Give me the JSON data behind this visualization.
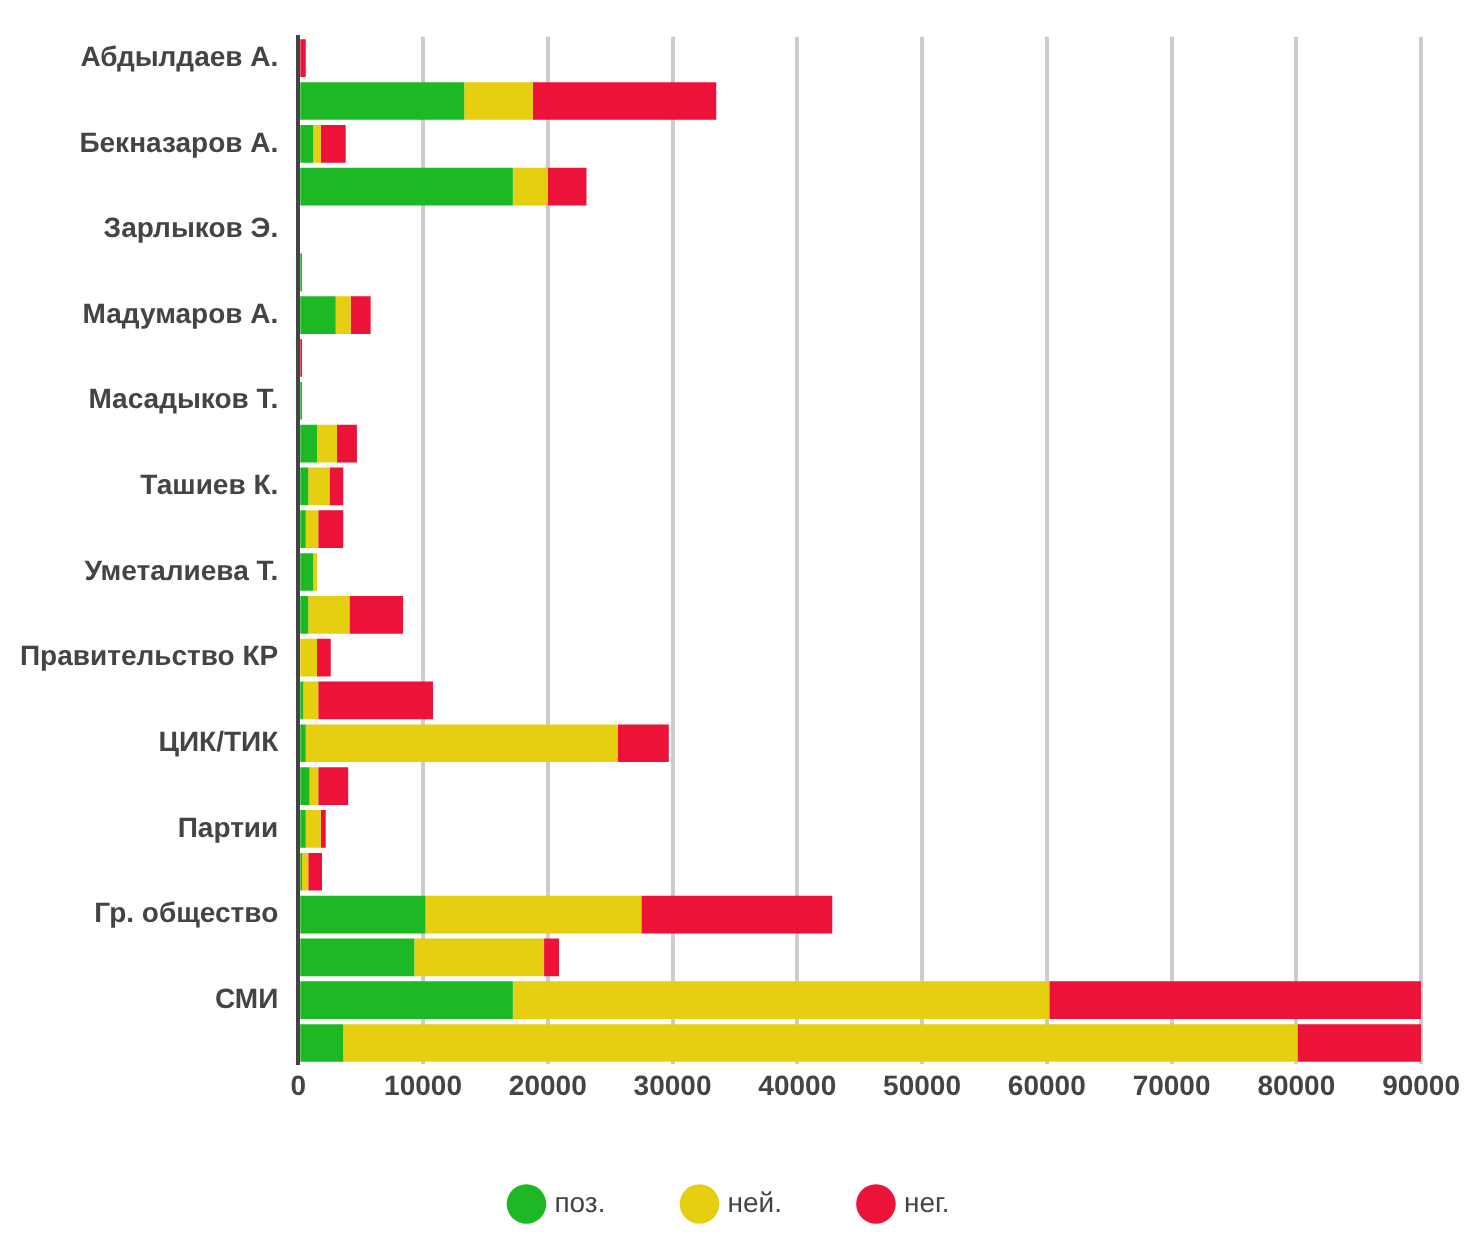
{
  "chart_data": {
    "type": "bar",
    "orientation": "horizontal",
    "stacked": true,
    "categories": [
      "Абдылдаев А.",
      null,
      "Бекназаров А.",
      null,
      "Зарлыков Э.",
      null,
      "Мадумаров А.",
      null,
      "Масадыков Т.",
      null,
      "Ташиев К.",
      null,
      "Уметалиева Т.",
      null,
      "Правительство КР",
      null,
      "ЦИК/ТИК",
      null,
      "Партии",
      null,
      "Гр. общество",
      null,
      "СМИ",
      null
    ],
    "series": [
      {
        "name": "поз.",
        "color": "#1db924",
        "values": [
          0,
          13300,
          1200,
          17200,
          0,
          300,
          3000,
          0,
          300,
          1500,
          800,
          600,
          1200,
          800,
          0,
          400,
          600,
          900,
          600,
          300,
          10200,
          9300,
          17200,
          3600
        ]
      },
      {
        "name": "ней.",
        "color": "#e5cf10",
        "values": [
          0,
          5500,
          600,
          2800,
          0,
          0,
          1200,
          0,
          0,
          1600,
          1700,
          1000,
          300,
          3300,
          1500,
          1200,
          25000,
          700,
          1200,
          500,
          17300,
          10400,
          43000,
          76500
        ]
      },
      {
        "name": "нег.",
        "color": "#ec1238",
        "values": [
          600,
          14700,
          2000,
          3100,
          0,
          0,
          1600,
          300,
          0,
          1600,
          1100,
          2000,
          0,
          4300,
          1100,
          9200,
          4100,
          2400,
          400,
          1100,
          15300,
          1200,
          29800,
          9900
        ]
      }
    ],
    "xlim": [
      0,
      90000
    ],
    "xticks": [
      0,
      10000,
      20000,
      30000,
      40000,
      50000,
      60000,
      70000,
      80000,
      90000
    ],
    "grid": "x",
    "legend": "bottom",
    "marker": "circle"
  }
}
